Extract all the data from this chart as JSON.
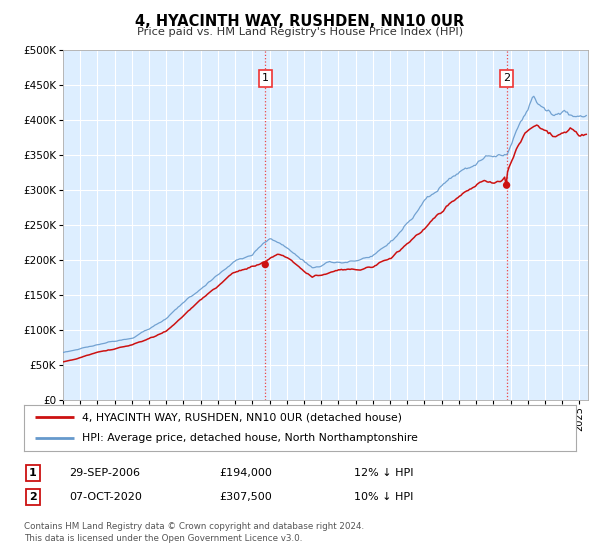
{
  "title": "4, HYACINTH WAY, RUSHDEN, NN10 0UR",
  "subtitle": "Price paid vs. HM Land Registry's House Price Index (HPI)",
  "ylim": [
    0,
    500000
  ],
  "yticks": [
    0,
    50000,
    100000,
    150000,
    200000,
    250000,
    300000,
    350000,
    400000,
    450000,
    500000
  ],
  "xlim_start": 1995.0,
  "xlim_end": 2025.5,
  "grid_color": "#cccccc",
  "hpi_color": "#6699cc",
  "price_color": "#cc1111",
  "marker_color": "#cc1111",
  "dashed_line_color": "#ee3333",
  "chart_bg": "#ddeeff",
  "transaction1_x": 2006.75,
  "transaction1_y": 194000,
  "transaction2_x": 2020.77,
  "transaction2_y": 307500,
  "legend_line1": "4, HYACINTH WAY, RUSHDEN, NN10 0UR (detached house)",
  "legend_line2": "HPI: Average price, detached house, North Northamptonshire",
  "note1_num": "1",
  "note1_date": "29-SEP-2006",
  "note1_price": "£194,000",
  "note1_pct": "12% ↓ HPI",
  "note2_num": "2",
  "note2_date": "07-OCT-2020",
  "note2_price": "£307,500",
  "note2_pct": "10% ↓ HPI",
  "footer": "Contains HM Land Registry data © Crown copyright and database right 2024.\nThis data is licensed under the Open Government Licence v3.0."
}
